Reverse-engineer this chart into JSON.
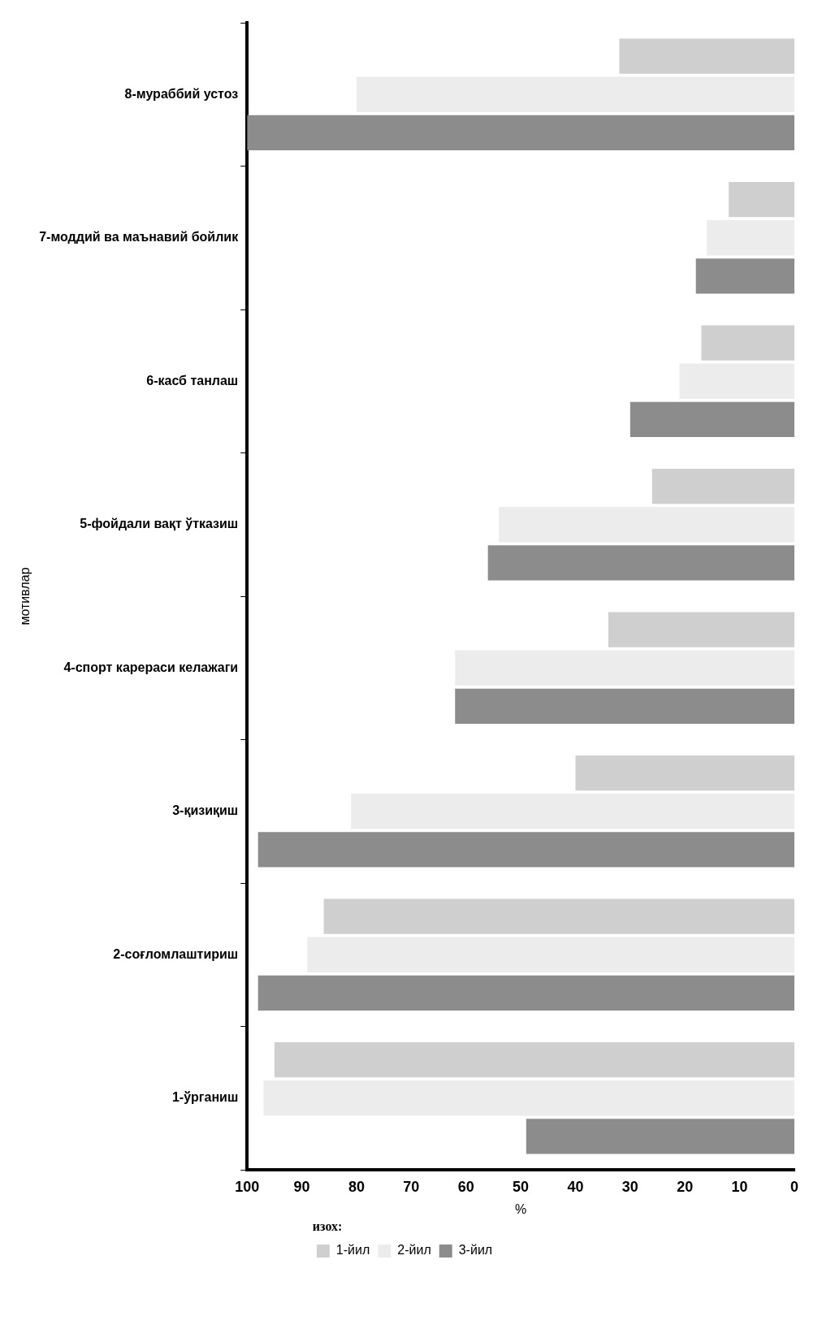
{
  "chart_data": {
    "type": "bar",
    "orientation": "horizontal",
    "xlabel": "%",
    "ylabel": "мотивлар",
    "legend_title": "изох:",
    "categories": [
      "8-мураббий устоз",
      "7-моддий ва маънавий бойлик",
      "6-касб танлаш",
      "5-фойдали вақт ўтказиш",
      "4-спорт карераси келажаги",
      "3-қизиқиш",
      "2-соғломлаштириш",
      "1-ўрганиш"
    ],
    "series": [
      {
        "name": "1-йил",
        "color": "#cfcfcf",
        "values": [
          32,
          12,
          17,
          26,
          34,
          40,
          86,
          95
        ]
      },
      {
        "name": "2-йил",
        "color": "#ececec",
        "values": [
          80,
          16,
          21,
          54,
          62,
          81,
          89,
          97
        ]
      },
      {
        "name": "3-йил",
        "color": "#8c8c8c",
        "values": [
          100,
          18,
          30,
          56,
          62,
          98,
          98,
          49
        ]
      }
    ],
    "xlim": [
      100,
      0
    ],
    "xticks": [
      100,
      90,
      80,
      70,
      60,
      50,
      40,
      30,
      20,
      10,
      0
    ],
    "grid": false,
    "legend": "bottom"
  }
}
